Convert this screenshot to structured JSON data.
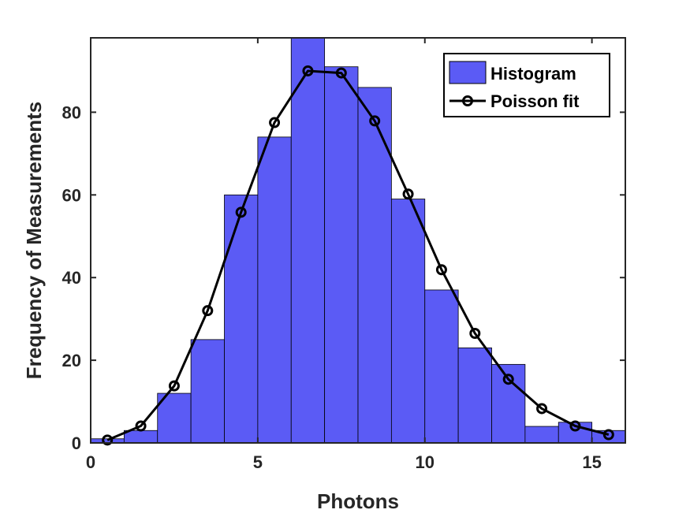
{
  "chart_data": {
    "type": "bar",
    "title": "",
    "xlabel": "Photons",
    "ylabel": "Frequency of Measurements",
    "xlim": [
      0,
      16
    ],
    "ylim": [
      0,
      98
    ],
    "x_ticks": [
      "0",
      "5",
      "10",
      "15"
    ],
    "y_ticks": [
      "0",
      "20",
      "40",
      "60",
      "80"
    ],
    "grid": false,
    "legend_position": "top-right",
    "series": [
      {
        "name": "Histogram",
        "type": "histogram",
        "color": "#5b5bf5",
        "bin_edges": [
          0,
          1,
          2,
          3,
          4,
          5,
          6,
          7,
          8,
          9,
          10,
          11,
          12,
          13,
          14,
          15,
          16
        ],
        "values": [
          1,
          3,
          12,
          25,
          60,
          74,
          98,
          91,
          86,
          59,
          37,
          23,
          19,
          4,
          5,
          3
        ]
      },
      {
        "name": "Poisson fit",
        "type": "line",
        "color": "#000000",
        "marker": "circle",
        "x": [
          0.5,
          1.5,
          2.5,
          3.5,
          4.5,
          5.5,
          6.5,
          7.5,
          8.5,
          9.5,
          10.5,
          11.5,
          12.5,
          13.5,
          14.5,
          15.5
        ],
        "y": [
          0.7,
          4.1,
          13.8,
          32.0,
          55.8,
          77.5,
          90.0,
          89.5,
          77.9,
          60.2,
          41.9,
          26.5,
          15.4,
          8.3,
          4.1,
          2.0
        ]
      }
    ]
  }
}
